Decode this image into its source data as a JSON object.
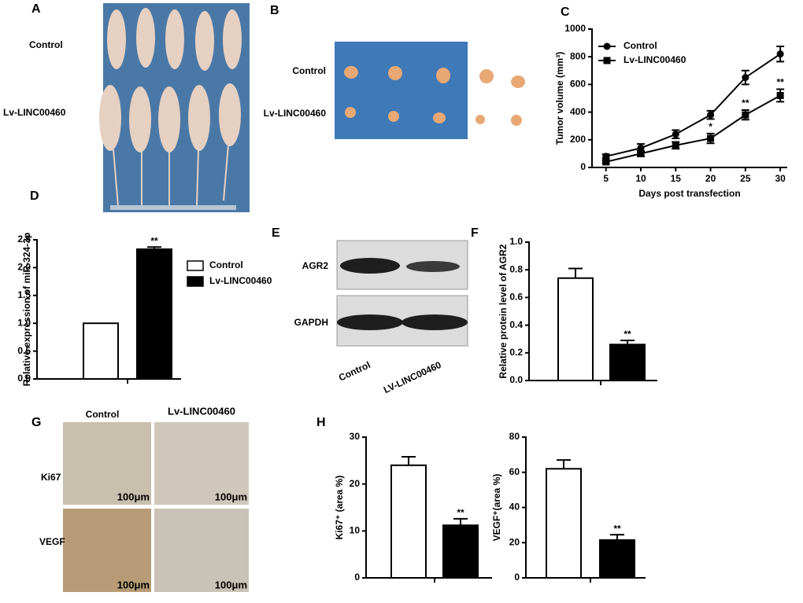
{
  "figure": {
    "A": {
      "letter": "A",
      "row_labels": [
        "Control",
        "Lv-LINC00460"
      ]
    },
    "B": {
      "letter": "B",
      "row_labels": [
        "Control",
        "Lv-LINC00460"
      ]
    },
    "C": {
      "letter": "C"
    },
    "D": {
      "letter": "D"
    },
    "E": {
      "letter": "E",
      "row_labels": [
        "AGR2",
        "GAPDH"
      ],
      "col_labels": [
        "Control",
        "LV-LINC00460"
      ]
    },
    "F": {
      "letter": "F"
    },
    "G": {
      "letter": "G",
      "col_labels": [
        "Control",
        "Lv-LINC00460"
      ],
      "row_labels": [
        "Ki67",
        "VEGF"
      ],
      "scale_bar": "100μm"
    },
    "H": {
      "letter": "H"
    }
  },
  "chart_data": [
    {
      "type": "line",
      "x_label": "Days post transfection",
      "y_label": "Tumor volume (mm³)",
      "x": [
        5,
        10,
        15,
        20,
        25,
        30
      ],
      "xlim": [
        3,
        31
      ],
      "xticks": [
        5,
        10,
        15,
        20,
        25,
        30
      ],
      "ylim": [
        0,
        1000
      ],
      "yticks": [
        0,
        200,
        400,
        600,
        800,
        1000
      ],
      "series": [
        {
          "name": "Control",
          "color": "#000000",
          "marker": "circle",
          "values": [
            80,
            140,
            240,
            380,
            650,
            820
          ],
          "errors": [
            15,
            30,
            30,
            30,
            50,
            55
          ]
        },
        {
          "name": "Lv-LINC00460",
          "color": "#000000",
          "marker": "square",
          "values": [
            40,
            100,
            160,
            210,
            380,
            520
          ],
          "errors": [
            10,
            20,
            25,
            35,
            35,
            45
          ],
          "significance": [
            null,
            null,
            null,
            "*",
            "**",
            "**"
          ]
        }
      ]
    },
    {
      "type": "bar",
      "y_label": "Relative expression of miR-324-3p",
      "legend": true,
      "ylim": [
        0,
        2.5
      ],
      "yticks": [
        {
          "value": 0,
          "label": "0.0"
        },
        0.5,
        {
          "value": 1,
          "label": "1.0"
        },
        1.5,
        {
          "value": 2,
          "label": "2.0"
        },
        2.5
      ],
      "series": [
        {
          "name": "Control",
          "color": "#ffffff",
          "values": [
            1.0
          ],
          "errors": [
            0
          ]
        },
        {
          "name": "Lv-LINC00460",
          "color": "#000000",
          "values": [
            2.33
          ],
          "errors": [
            0.04
          ],
          "significance": [
            "**"
          ]
        }
      ]
    },
    {
      "type": "bar",
      "y_label": "Relative protein level of  AGR2",
      "ylim": [
        0,
        1
      ],
      "yticks": [
        {
          "value": 0,
          "label": "0.0"
        },
        0.2,
        0.4,
        0.6,
        0.8,
        {
          "value": 1,
          "label": "1.0"
        }
      ],
      "series": [
        {
          "color": "#ffffff",
          "values": [
            0.74
          ],
          "errors": [
            0.07
          ]
        },
        {
          "color": "#000000",
          "values": [
            0.26
          ],
          "errors": [
            0.03
          ],
          "significance": [
            "**"
          ]
        }
      ]
    },
    {
      "type": "bar",
      "y_label": "Ki67⁺ (area %)",
      "ylim": [
        0,
        30
      ],
      "yticks": [
        0,
        10,
        20,
        30
      ],
      "series": [
        {
          "color": "#ffffff",
          "values": [
            24
          ],
          "errors": [
            1.8
          ]
        },
        {
          "color": "#000000",
          "values": [
            11.2
          ],
          "errors": [
            1.4
          ],
          "significance": [
            "**"
          ]
        }
      ]
    },
    {
      "type": "bar",
      "y_label": "VEGF⁺(area %)",
      "ylim": [
        0,
        80
      ],
      "yticks": [
        0,
        20,
        40,
        60,
        80
      ],
      "series": [
        {
          "color": "#ffffff",
          "values": [
            62
          ],
          "errors": [
            5
          ]
        },
        {
          "color": "#000000",
          "values": [
            21.5
          ],
          "errors": [
            3
          ],
          "significance": [
            "**"
          ]
        }
      ]
    }
  ]
}
